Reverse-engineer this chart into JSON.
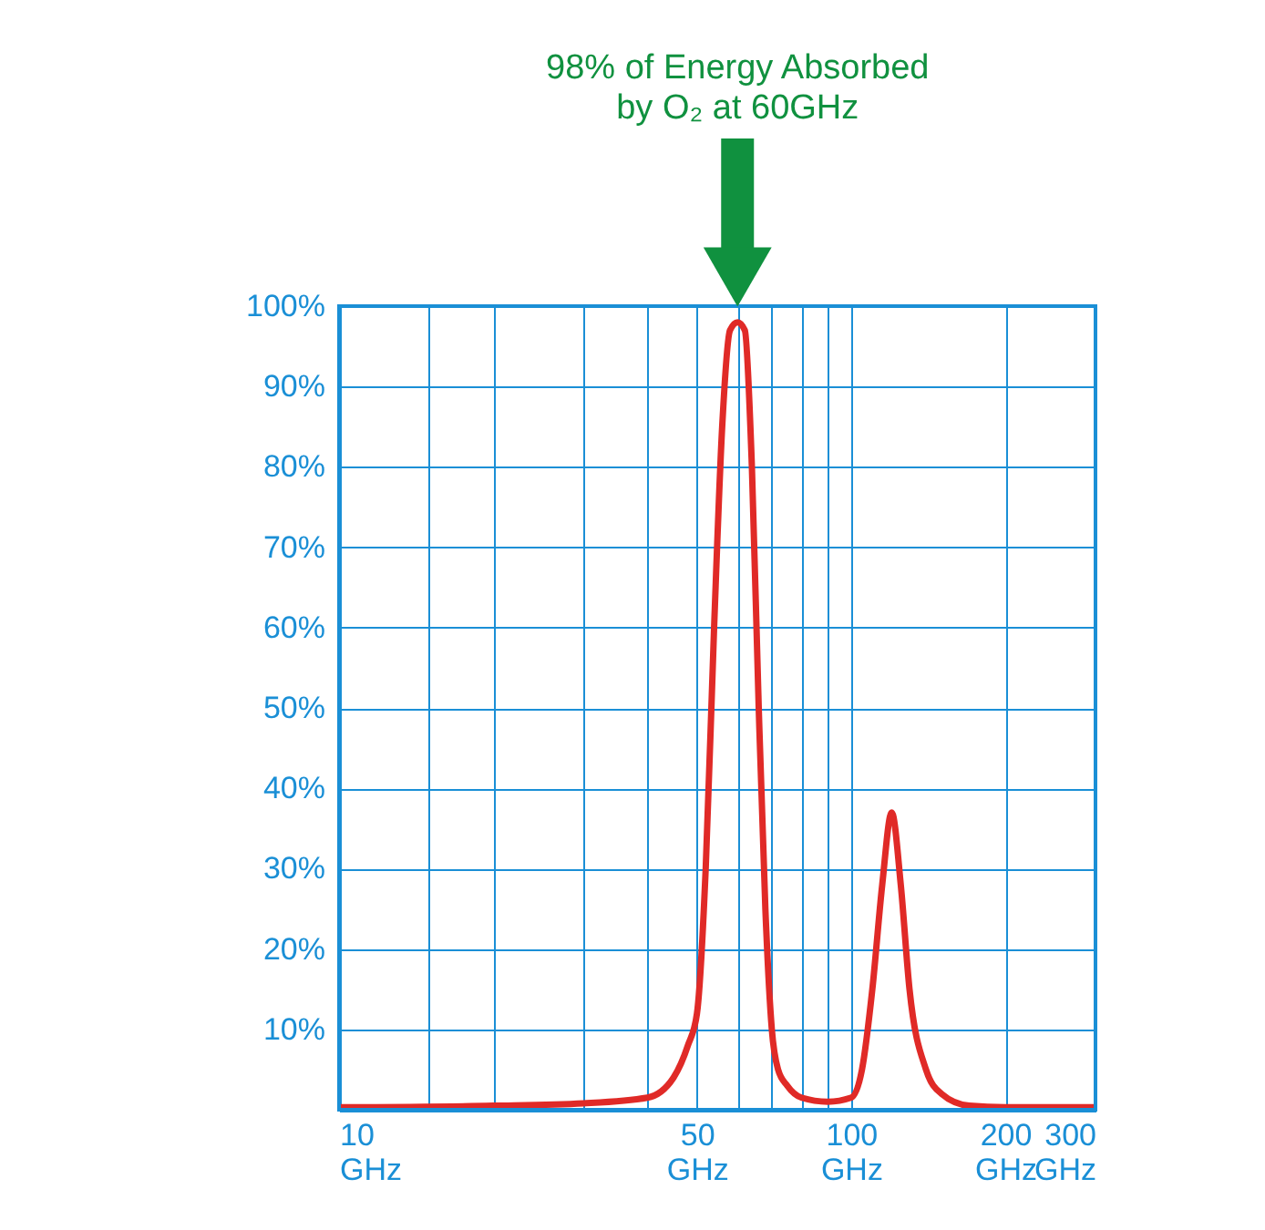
{
  "chart_data": {
    "type": "line",
    "annotations": [
      "98% of Energy Absorbed\nby O₂ at 60GHz"
    ],
    "x": [
      10,
      20,
      30,
      40,
      45,
      48,
      50,
      52,
      54,
      56,
      58,
      60,
      62,
      64,
      66,
      68,
      70,
      72,
      75,
      80,
      90,
      100,
      105,
      110,
      115,
      120,
      125,
      130,
      140,
      150,
      170,
      200,
      300
    ],
    "series": [
      {
        "color": "#e02a27",
        "values": [
          0.3,
          0.5,
          0.8,
          1.5,
          4,
          8,
          12,
          30,
          60,
          85,
          97,
          98,
          97,
          80,
          50,
          25,
          10,
          5,
          3,
          1.5,
          1,
          1.5,
          5,
          15,
          28,
          37,
          28,
          15,
          5,
          2,
          0.5,
          0.3,
          0.3
        ]
      }
    ],
    "log": "x",
    "xlim": [
      10,
      300
    ],
    "ylim": [
      0,
      100
    ],
    "xticks": [
      {
        "value": 10,
        "label": "10\nGHz"
      },
      {
        "value": 15,
        "label": null
      },
      {
        "value": 20,
        "label": null
      },
      {
        "value": 30,
        "label": null
      },
      {
        "value": 40,
        "label": null
      },
      {
        "value": 50,
        "label": "50\nGHz"
      },
      {
        "value": 60,
        "label": null
      },
      {
        "value": 70,
        "label": null
      },
      {
        "value": 80,
        "label": null
      },
      {
        "value": 90,
        "label": null
      },
      {
        "value": 100,
        "label": "100\nGHz"
      },
      {
        "value": 200,
        "label": "200\nGHz"
      },
      {
        "value": 300,
        "label": "300\nGHz"
      }
    ],
    "yticks": [
      {
        "value": 0,
        "label": null
      },
      {
        "value": 10,
        "label": "10%"
      },
      {
        "value": 20,
        "label": "20%"
      },
      {
        "value": 30,
        "label": "30%"
      },
      {
        "value": 40,
        "label": "40%"
      },
      {
        "value": 50,
        "label": "50%"
      },
      {
        "value": 60,
        "label": "60%"
      },
      {
        "value": 70,
        "label": "70%"
      },
      {
        "value": 80,
        "label": "80%"
      },
      {
        "value": 90,
        "label": "90%"
      },
      {
        "value": 100,
        "label": "100%"
      }
    ],
    "grid": true,
    "marker": "none",
    "line_style": "solid"
  }
}
